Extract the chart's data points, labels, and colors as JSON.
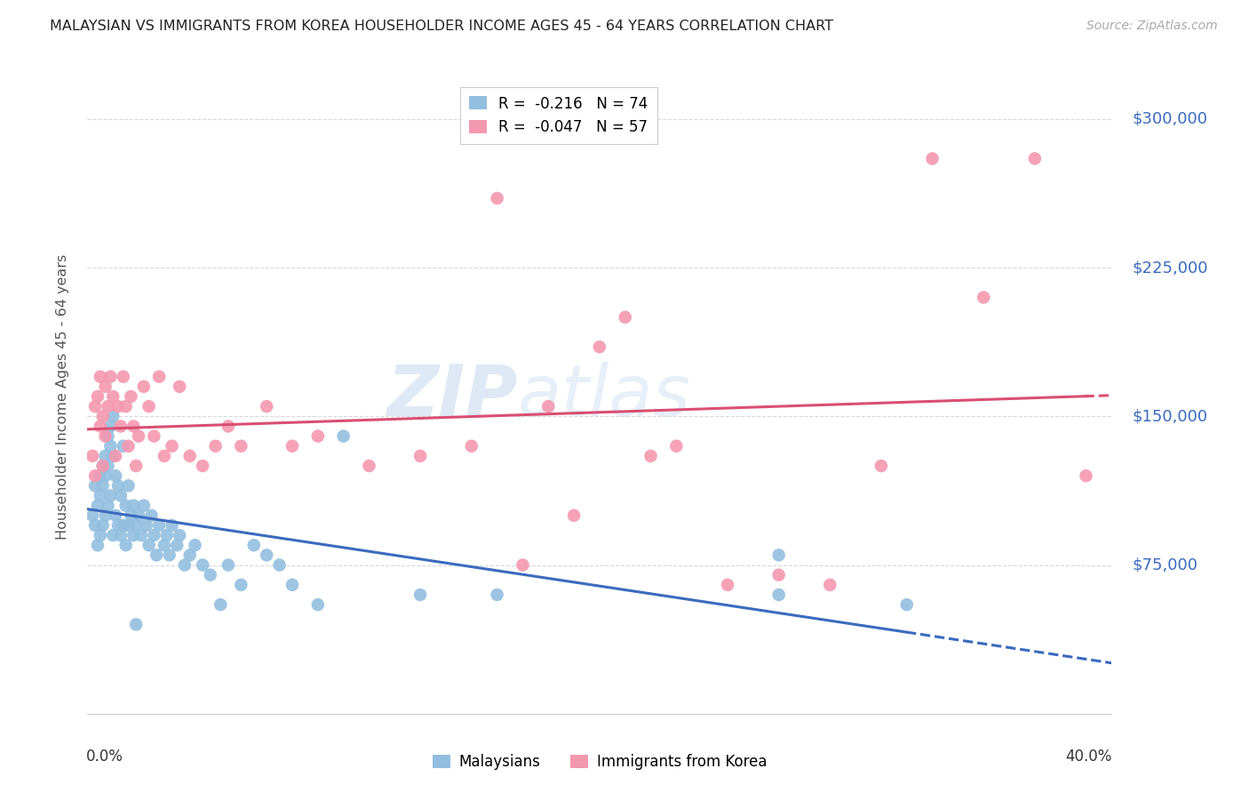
{
  "title": "MALAYSIAN VS IMMIGRANTS FROM KOREA HOUSEHOLDER INCOME AGES 45 - 64 YEARS CORRELATION CHART",
  "source": "Source: ZipAtlas.com",
  "ylabel": "Householder Income Ages 45 - 64 years",
  "yticks": [
    0,
    75000,
    150000,
    225000,
    300000
  ],
  "ytick_labels": [
    "",
    "$75,000",
    "$150,000",
    "$225,000",
    "$300,000"
  ],
  "ymin": 0,
  "ymax": 320000,
  "xmin": 0.0,
  "xmax": 0.4,
  "watermark_zip": "ZIP",
  "watermark_atlas": "atlas",
  "legend_r1": "R =  -0.216   N = 74",
  "legend_r2": "R =  -0.047   N = 57",
  "legend_label1": "Malaysians",
  "legend_label2": "Immigrants from Korea",
  "malaysian_color": "#92bfdf",
  "korean_color": "#f498b0",
  "trend_malaysian_color": "#3a6bbf",
  "trend_korean_color": "#d94f72",
  "background_color": "#ffffff",
  "grid_color": "#d8d8d8",
  "title_color": "#222222",
  "source_color": "#aaaaaa",
  "axis_label_color": "#3a6bbf",
  "malaysians_x": [
    0.002,
    0.003,
    0.003,
    0.004,
    0.004,
    0.005,
    0.005,
    0.005,
    0.006,
    0.006,
    0.006,
    0.007,
    0.007,
    0.007,
    0.008,
    0.008,
    0.008,
    0.009,
    0.009,
    0.009,
    0.01,
    0.01,
    0.01,
    0.011,
    0.011,
    0.012,
    0.012,
    0.013,
    0.013,
    0.014,
    0.014,
    0.015,
    0.015,
    0.016,
    0.016,
    0.017,
    0.018,
    0.018,
    0.019,
    0.019,
    0.02,
    0.021,
    0.022,
    0.023,
    0.024,
    0.025,
    0.026,
    0.027,
    0.028,
    0.03,
    0.031,
    0.032,
    0.033,
    0.035,
    0.036,
    0.038,
    0.04,
    0.042,
    0.045,
    0.048,
    0.052,
    0.055,
    0.06,
    0.065,
    0.07,
    0.075,
    0.08,
    0.09,
    0.1,
    0.13,
    0.16,
    0.27,
    0.32,
    0.27
  ],
  "malaysians_y": [
    100000,
    115000,
    95000,
    105000,
    85000,
    120000,
    110000,
    90000,
    125000,
    115000,
    95000,
    130000,
    120000,
    100000,
    140000,
    125000,
    105000,
    145000,
    135000,
    110000,
    150000,
    130000,
    90000,
    120000,
    100000,
    115000,
    95000,
    110000,
    90000,
    135000,
    95000,
    105000,
    85000,
    115000,
    95000,
    100000,
    90000,
    105000,
    95000,
    45000,
    100000,
    90000,
    105000,
    95000,
    85000,
    100000,
    90000,
    80000,
    95000,
    85000,
    90000,
    80000,
    95000,
    85000,
    90000,
    75000,
    80000,
    85000,
    75000,
    70000,
    55000,
    75000,
    65000,
    85000,
    80000,
    75000,
    65000,
    55000,
    140000,
    60000,
    60000,
    60000,
    55000,
    80000
  ],
  "koreans_x": [
    0.002,
    0.003,
    0.003,
    0.004,
    0.005,
    0.005,
    0.006,
    0.006,
    0.007,
    0.007,
    0.008,
    0.009,
    0.01,
    0.011,
    0.012,
    0.013,
    0.014,
    0.015,
    0.016,
    0.017,
    0.018,
    0.019,
    0.02,
    0.022,
    0.024,
    0.026,
    0.028,
    0.03,
    0.033,
    0.036,
    0.04,
    0.045,
    0.05,
    0.055,
    0.06,
    0.07,
    0.08,
    0.09,
    0.11,
    0.13,
    0.15,
    0.17,
    0.19,
    0.21,
    0.23,
    0.25,
    0.27,
    0.29,
    0.31,
    0.33,
    0.35,
    0.37,
    0.39,
    0.16,
    0.18,
    0.2,
    0.22
  ],
  "koreans_y": [
    130000,
    155000,
    120000,
    160000,
    170000,
    145000,
    150000,
    125000,
    165000,
    140000,
    155000,
    170000,
    160000,
    130000,
    155000,
    145000,
    170000,
    155000,
    135000,
    160000,
    145000,
    125000,
    140000,
    165000,
    155000,
    140000,
    170000,
    130000,
    135000,
    165000,
    130000,
    125000,
    135000,
    145000,
    135000,
    155000,
    135000,
    140000,
    125000,
    130000,
    135000,
    75000,
    100000,
    200000,
    135000,
    65000,
    70000,
    65000,
    125000,
    280000,
    210000,
    280000,
    120000,
    260000,
    155000,
    185000,
    130000
  ]
}
